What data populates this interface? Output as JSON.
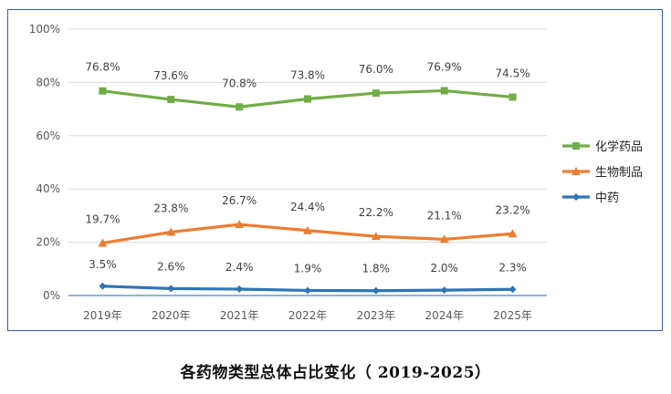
{
  "caption": "各药物类型总体占比变化（ 2019-2025）",
  "chart_data": {
    "type": "line",
    "categories": [
      "2019年",
      "2020年",
      "2021年",
      "2022年",
      "2023年",
      "2024年",
      "2025年"
    ],
    "ylim": [
      0,
      100
    ],
    "yticks": [
      "0%",
      "20%",
      "40%",
      "60%",
      "80%",
      "100%"
    ],
    "ytick_values": [
      0,
      20,
      40,
      60,
      80,
      100
    ],
    "grid": true,
    "legend_position": "right",
    "series": [
      {
        "name": "化学药品",
        "color": "#70ad47",
        "marker": "square",
        "values": [
          76.8,
          73.6,
          70.8,
          73.8,
          76.0,
          76.9,
          74.5
        ],
        "labels": [
          "76.8%",
          "73.6%",
          "70.8%",
          "73.8%",
          "76.0%",
          "76.9%",
          "74.5%"
        ]
      },
      {
        "name": "生物制品",
        "color": "#ed7d31",
        "marker": "triangle",
        "values": [
          19.7,
          23.8,
          26.7,
          24.4,
          22.2,
          21.1,
          23.2
        ],
        "labels": [
          "19.7%",
          "23.8%",
          "26.7%",
          "24.4%",
          "22.2%",
          "21.1%",
          "23.2%"
        ]
      },
      {
        "name": "中药",
        "color": "#2e75b6",
        "marker": "diamond",
        "values": [
          3.5,
          2.6,
          2.4,
          1.9,
          1.8,
          2.0,
          2.3
        ],
        "labels": [
          "3.5%",
          "2.6%",
          "2.4%",
          "1.9%",
          "1.8%",
          "2.0%",
          "2.3%"
        ]
      }
    ]
  }
}
